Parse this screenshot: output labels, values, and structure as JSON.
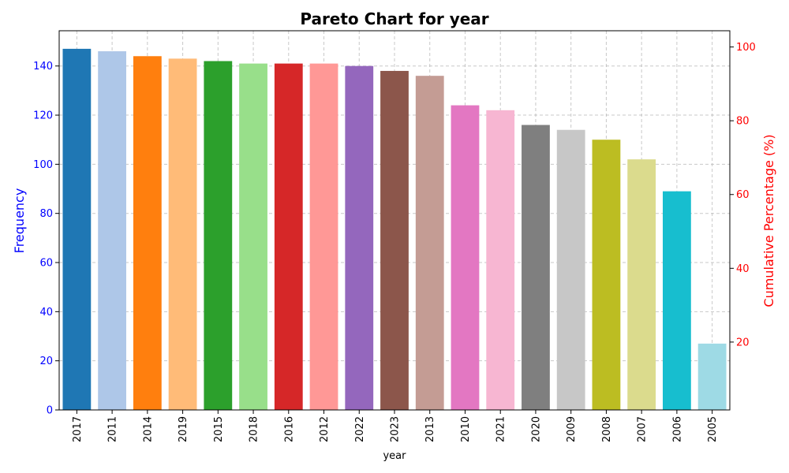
{
  "chart_data": {
    "type": "bar",
    "title": "Pareto Chart for year",
    "xlabel": "year",
    "ylabel": "Frequency",
    "y2label": "Cumulative Percentage (%)",
    "categories": [
      "2017",
      "2011",
      "2014",
      "2019",
      "2015",
      "2018",
      "2016",
      "2012",
      "2022",
      "2023",
      "2013",
      "2010",
      "2021",
      "2020",
      "2009",
      "2008",
      "2007",
      "2006",
      "2005"
    ],
    "values": [
      147,
      146,
      144,
      143,
      142,
      141,
      141,
      141,
      140,
      138,
      136,
      124,
      122,
      116,
      114,
      110,
      102,
      89,
      27
    ],
    "colors": [
      "#1f77b4",
      "#aec7e8",
      "#ff7f0e",
      "#ffbb78",
      "#2ca02c",
      "#98df8a",
      "#d62728",
      "#ff9896",
      "#9467bd",
      "#8c564b",
      "#c49c94",
      "#e377c2",
      "#f7b6d2",
      "#7f7f7f",
      "#c7c7c7",
      "#bcbd22",
      "#dbdb8d",
      "#17becf",
      "#9edae5"
    ],
    "ylim": [
      0,
      154.35
    ],
    "yticks": [
      "0",
      "20",
      "40",
      "60",
      "80",
      "100",
      "120",
      "140"
    ],
    "y2lim": [
      1.6,
      104.4
    ],
    "y2ticks": [
      "20",
      "40",
      "60",
      "80",
      "100"
    ],
    "grid": true,
    "left_axis_color": "#0000ff",
    "right_axis_color": "#ff0000"
  }
}
